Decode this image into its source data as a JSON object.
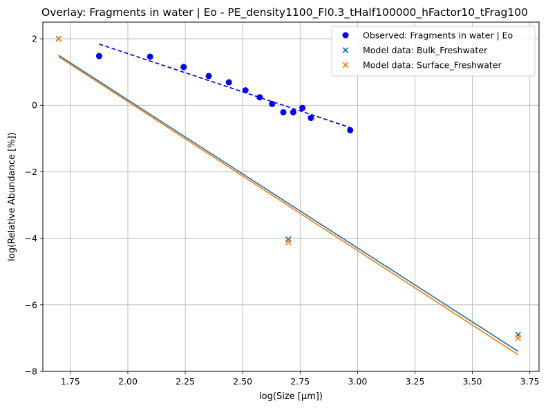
{
  "chart_data": {
    "type": "scatter",
    "title": "Overlay: Fragments in water | Eo - PE_density1100_FI0.3_tHalf100000_hFactor10_tFrag100",
    "xlabel": "log(Size [μm])",
    "ylabel": "log(Relative Abundance [%])",
    "xlim": [
      1.63,
      3.79
    ],
    "ylim": [
      -8,
      2.5
    ],
    "xticks": [
      1.75,
      2.0,
      2.25,
      2.5,
      2.75,
      3.0,
      3.25,
      3.5,
      3.75
    ],
    "xtick_labels": [
      "1.75",
      "2.00",
      "2.25",
      "2.50",
      "2.75",
      "3.00",
      "3.25",
      "3.50",
      "3.75"
    ],
    "yticks": [
      -8,
      -6,
      -4,
      -2,
      0,
      2
    ],
    "ytick_labels": [
      "−8",
      "−6",
      "−4",
      "−2",
      "0",
      "2"
    ],
    "grid": true,
    "legend_position": "top-right",
    "series": [
      {
        "name": "Observed: Fragments in water | Eo",
        "marker": "circle",
        "color": "#0000ff",
        "x": [
          1.875,
          2.097,
          2.243,
          2.352,
          2.44,
          2.512,
          2.574,
          2.628,
          2.677,
          2.72,
          2.76,
          2.797,
          2.968
        ],
        "y": [
          1.48,
          1.46,
          1.15,
          0.88,
          0.69,
          0.45,
          0.24,
          0.04,
          -0.21,
          -0.21,
          -0.08,
          -0.38,
          -0.75
        ]
      },
      {
        "name": "Model data: Bulk_Freshwater",
        "marker": "x",
        "color": "#1f77b4",
        "x": [
          1.699,
          2.699,
          3.699
        ],
        "y": [
          2.0,
          -4.03,
          -6.9
        ]
      },
      {
        "name": "Model data: Surface_Freshwater",
        "marker": "x",
        "color": "#ff7f0e",
        "x": [
          1.699,
          2.699,
          3.699
        ],
        "y": [
          2.0,
          -4.12,
          -7.0
        ]
      }
    ],
    "lines": [
      {
        "kind": "fit-observed",
        "style": "dashed",
        "color": "#0000ff",
        "x": [
          1.875,
          2.968
        ],
        "y": [
          1.84,
          -0.67
        ]
      },
      {
        "kind": "fit-bulk",
        "style": "solid",
        "color": "#1f77b4",
        "x": [
          1.699,
          3.699
        ],
        "y": [
          1.5,
          -7.4
        ]
      },
      {
        "kind": "fit-surface",
        "style": "solid",
        "color": "#ff7f0e",
        "x": [
          1.699,
          3.699
        ],
        "y": [
          1.46,
          -7.5
        ]
      }
    ]
  }
}
